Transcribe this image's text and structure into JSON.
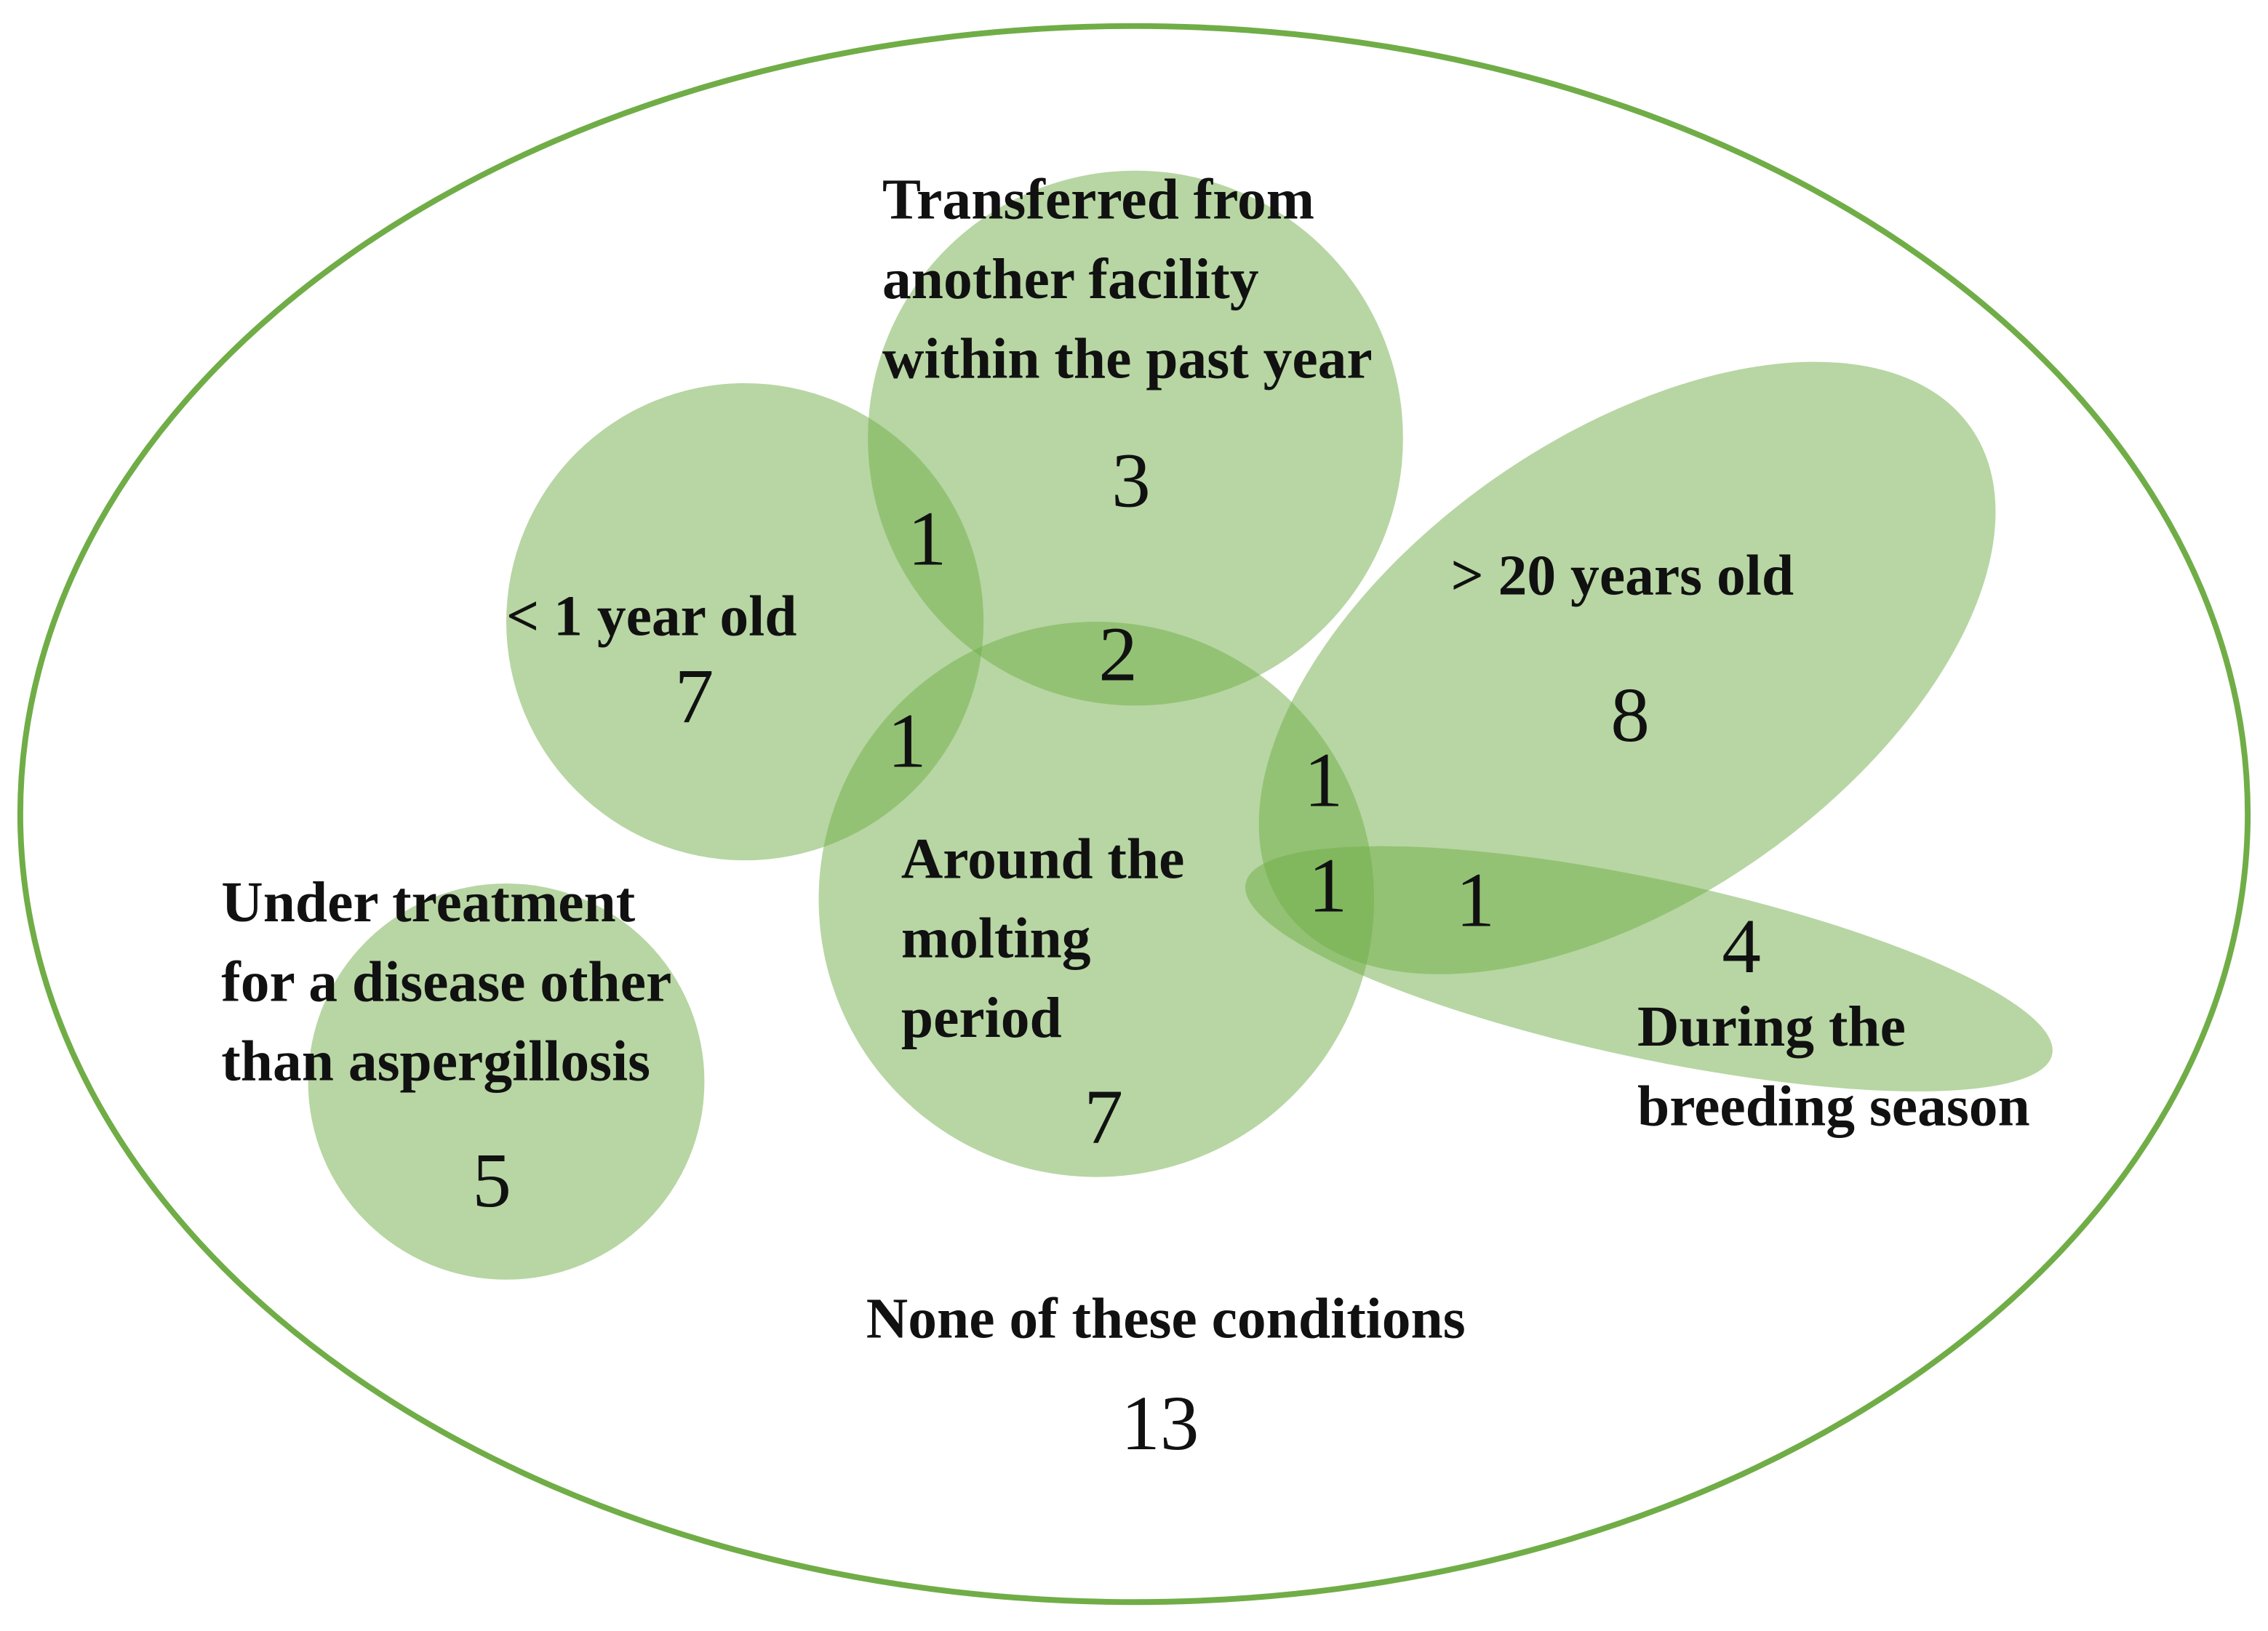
{
  "sets": [
    {
      "lines": [
        "Transferred from",
        "another facility",
        "within the past year"
      ]
    },
    {
      "lines": [
        "< 1 year old"
      ]
    },
    {
      "lines": [
        "> 20 years old"
      ]
    },
    {
      "lines": [
        "Around the",
        "molting",
        "period"
      ]
    },
    {
      "lines": [
        "Under treatment",
        "for a disease other",
        "than aspergillosis"
      ]
    },
    {
      "lines": [
        "During the",
        "breeding season"
      ]
    }
  ],
  "regions": [
    3,
    1,
    7,
    2,
    1,
    1,
    8,
    1,
    1,
    4,
    7,
    5
  ],
  "outside": {
    "label": "None of these conditions",
    "count": 13
  }
}
